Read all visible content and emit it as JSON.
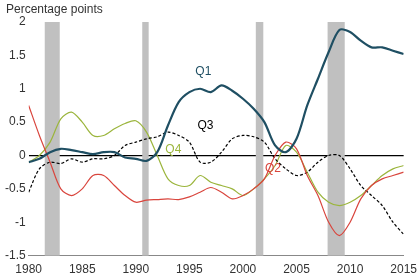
{
  "chart_data": {
    "type": "line",
    "y_label": "Percentage points",
    "x": [
      1980,
      1981,
      1982,
      1983,
      1984,
      1985,
      1986,
      1987,
      1988,
      1989,
      1990,
      1991,
      1992,
      1993,
      1994,
      1995,
      1996,
      1997,
      1998,
      1999,
      2000,
      2001,
      2002,
      2003,
      2004,
      2005,
      2006,
      2007,
      2008,
      2009,
      2010,
      2011,
      2012,
      2013,
      2014,
      2015
    ],
    "series": [
      {
        "name": "Q1",
        "color": "#1f4f63",
        "line_style": "solid",
        "label_position": [
          1996.3,
          1.25
        ],
        "values": [
          -0.1,
          -0.05,
          0.05,
          0.1,
          0.08,
          0.05,
          0.02,
          0.05,
          0.05,
          -0.03,
          -0.05,
          -0.08,
          0.05,
          0.45,
          0.8,
          0.95,
          1.0,
          0.95,
          1.05,
          0.97,
          0.85,
          0.7,
          0.5,
          0.15,
          0.05,
          0.25,
          0.75,
          1.15,
          1.55,
          1.88,
          1.85,
          1.72,
          1.62,
          1.62,
          1.57,
          1.52
        ]
      },
      {
        "name": "Q2",
        "color": "#d9453d",
        "line_style": "solid",
        "label_position": [
          2002.8,
          -0.2
        ],
        "values": [
          0.75,
          0.3,
          -0.1,
          -0.5,
          -0.6,
          -0.5,
          -0.3,
          -0.3,
          -0.45,
          -0.6,
          -0.7,
          -0.67,
          -0.66,
          -0.65,
          -0.66,
          -0.62,
          -0.55,
          -0.48,
          -0.55,
          -0.65,
          -0.6,
          -0.5,
          -0.35,
          0.0,
          0.2,
          0.1,
          -0.3,
          -0.6,
          -1.0,
          -1.2,
          -1.0,
          -0.65,
          -0.45,
          -0.35,
          -0.3,
          -0.25
        ]
      },
      {
        "name": "Q3",
        "color": "#000000",
        "line_style": "dashed",
        "label_position": [
          1996.5,
          0.45
        ],
        "values": [
          -0.55,
          -0.2,
          -0.1,
          -0.12,
          -0.05,
          -0.1,
          -0.05,
          -0.05,
          0.0,
          0.15,
          0.2,
          0.25,
          0.28,
          0.35,
          0.3,
          0.2,
          -0.1,
          -0.1,
          0.05,
          0.25,
          0.3,
          0.28,
          0.2,
          -0.05,
          -0.2,
          -0.3,
          -0.25,
          -0.1,
          0.0,
          0.0,
          -0.2,
          -0.45,
          -0.6,
          -0.75,
          -1.0,
          -1.18
        ]
      },
      {
        "name": "Q4",
        "color": "#9bb53c",
        "line_style": "solid",
        "label_position": [
          1993.5,
          0.08
        ],
        "values": [
          -0.1,
          0.0,
          0.2,
          0.55,
          0.65,
          0.5,
          0.3,
          0.3,
          0.4,
          0.48,
          0.52,
          0.35,
          0.0,
          -0.35,
          -0.45,
          -0.45,
          -0.3,
          -0.4,
          -0.45,
          -0.5,
          -0.6,
          -0.5,
          -0.35,
          -0.15,
          0.15,
          0.05,
          -0.25,
          -0.55,
          -0.7,
          -0.75,
          -0.7,
          -0.6,
          -0.45,
          -0.3,
          -0.2,
          -0.15
        ]
      }
    ],
    "recessions": [
      [
        1981.5,
        1982.9
      ],
      [
        1990.6,
        1991.2
      ],
      [
        2001.2,
        2001.9
      ],
      [
        2007.9,
        2009.5
      ]
    ],
    "xlim": [
      1980,
      2015
    ],
    "xticks": [
      1980,
      1985,
      1990,
      1995,
      2000,
      2005,
      2010,
      2015
    ],
    "ylim": [
      -1.5,
      2
    ],
    "yticks": [
      -1.5,
      -1,
      -0.5,
      0,
      0.5,
      1,
      1.5,
      2
    ],
    "grid": false,
    "legend": "none"
  }
}
